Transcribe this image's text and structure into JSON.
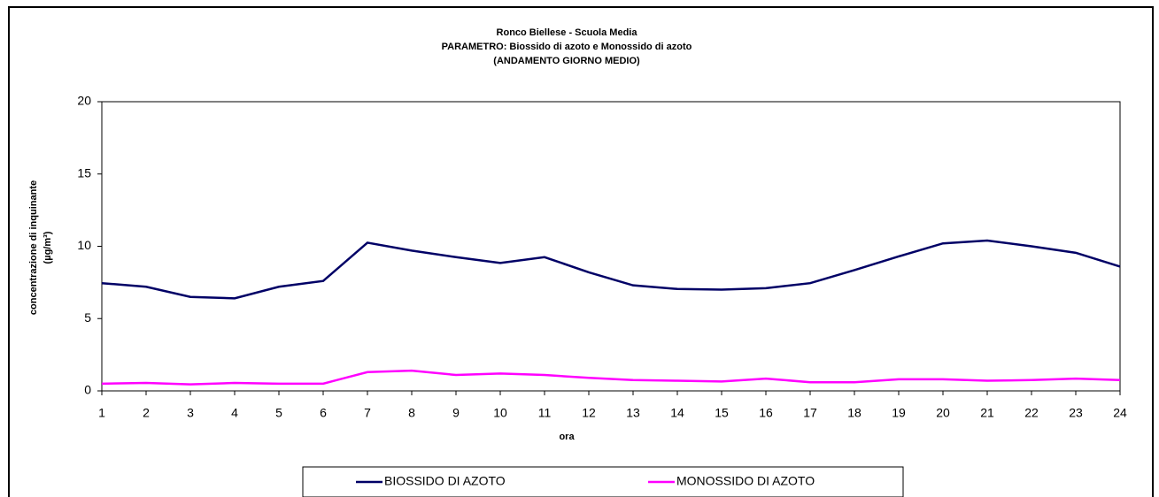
{
  "chart_data": {
    "type": "line",
    "title": [
      "Ronco Biellese - Scuola Media",
      "PARAMETRO: Biossido di azoto e Monossido di azoto",
      "(ANDAMENTO GIORNO MEDIO)"
    ],
    "x_label": "ora",
    "y_label": [
      "concentrazione di inquinante",
      "(µg/m³)"
    ],
    "categories": [
      "1",
      "2",
      "3",
      "4",
      "5",
      "6",
      "7",
      "8",
      "9",
      "10",
      "11",
      "12",
      "13",
      "14",
      "15",
      "16",
      "17",
      "18",
      "19",
      "20",
      "21",
      "22",
      "23",
      "24"
    ],
    "series": [
      {
        "name": "BIOSSIDO DI AZOTO",
        "color": "#000066",
        "values": [
          7.45,
          7.2,
          6.5,
          6.4,
          7.2,
          7.6,
          10.25,
          9.7,
          9.25,
          8.85,
          9.25,
          8.2,
          7.3,
          7.05,
          7.0,
          7.1,
          7.45,
          8.35,
          9.3,
          10.2,
          10.4,
          10.0,
          9.55,
          8.6
        ]
      },
      {
        "name": "MONOSSIDO DI AZOTO",
        "color": "#ff00ff",
        "values": [
          0.5,
          0.55,
          0.45,
          0.55,
          0.5,
          0.5,
          1.3,
          1.4,
          1.1,
          1.2,
          1.1,
          0.9,
          0.75,
          0.7,
          0.65,
          0.85,
          0.6,
          0.6,
          0.8,
          0.8,
          0.7,
          0.75,
          0.85,
          0.75
        ]
      }
    ],
    "ylim": [
      0,
      20
    ],
    "yticks": [
      0,
      5,
      10,
      15,
      20
    ],
    "grid": false,
    "legend": "bottom"
  }
}
